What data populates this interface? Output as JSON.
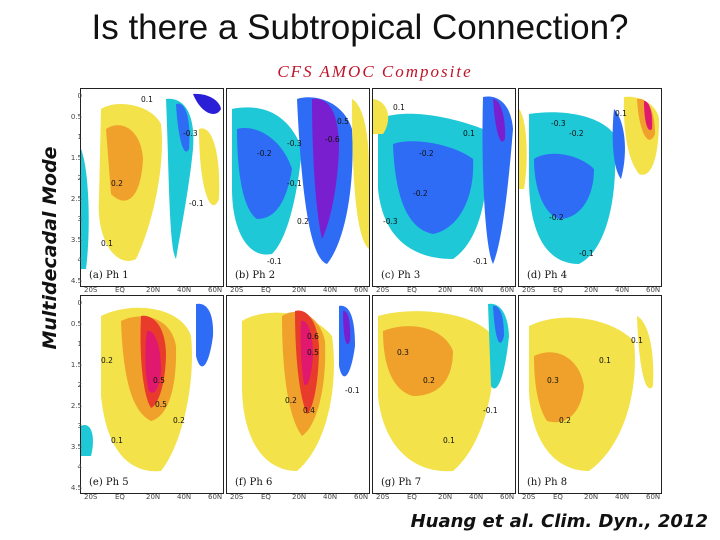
{
  "slide": {
    "title": "Is there a Subtropical Connection?",
    "subtitle": "CFS  AMOC  Composite",
    "ylabel": "Multidecadal Mode",
    "citation": "Huang et al. Clim. Dyn., 2012"
  },
  "panels": [
    {
      "label": "(a)  Ph  1"
    },
    {
      "label": "(b)  Ph  2"
    },
    {
      "label": "(c)  Ph  3"
    },
    {
      "label": "(d)  Ph  4"
    },
    {
      "label": "(e)  Ph  5"
    },
    {
      "label": "(f)  Ph  6"
    },
    {
      "label": "(g)  Ph  7"
    },
    {
      "label": "(h)  Ph  8"
    }
  ],
  "axes": {
    "depth_ticks": [
      "0",
      "0.5",
      "1",
      "1.5",
      "2",
      "2.5",
      "3",
      "3.5",
      "4",
      "4.5"
    ],
    "lat_ticks": [
      "20S",
      "EQ",
      "20N",
      "40N",
      "60N"
    ]
  },
  "contour_labels": [
    [
      "0.1",
      "-0.3",
      "0.2",
      "-0.1",
      "0.1"
    ],
    [
      "-0.3",
      "-0.6",
      "0.5",
      "-0.2",
      "-0.1",
      "0.2",
      "-0.1"
    ],
    [
      "0.1",
      "-0.2",
      "-0.3",
      "-0.2",
      "0.1",
      "-0.1"
    ],
    [
      "-0.3",
      "-0.2",
      "0.1",
      "-0.2",
      "-0.1"
    ],
    [
      "0.2",
      "0.5",
      "0.5",
      "0.2",
      "0.1"
    ],
    [
      "0.6",
      "0.5",
      "0.2",
      "-0.1",
      "0.4"
    ],
    [
      "0.3",
      "0.2",
      "0.1",
      "-0.1"
    ],
    [
      "0.3",
      "0.1",
      "0.2",
      "0.1"
    ]
  ],
  "colors": {
    "neg_strong": "#2a1fd6",
    "neg_mid": "#2e6cf5",
    "neg_weak": "#1ec8d6",
    "pos_weak": "#f3e24a",
    "pos_mid": "#f0a12b",
    "pos_strong": "#e83b2b",
    "pos_max": "#e0186e",
    "neg_max": "#7a1fd0"
  }
}
